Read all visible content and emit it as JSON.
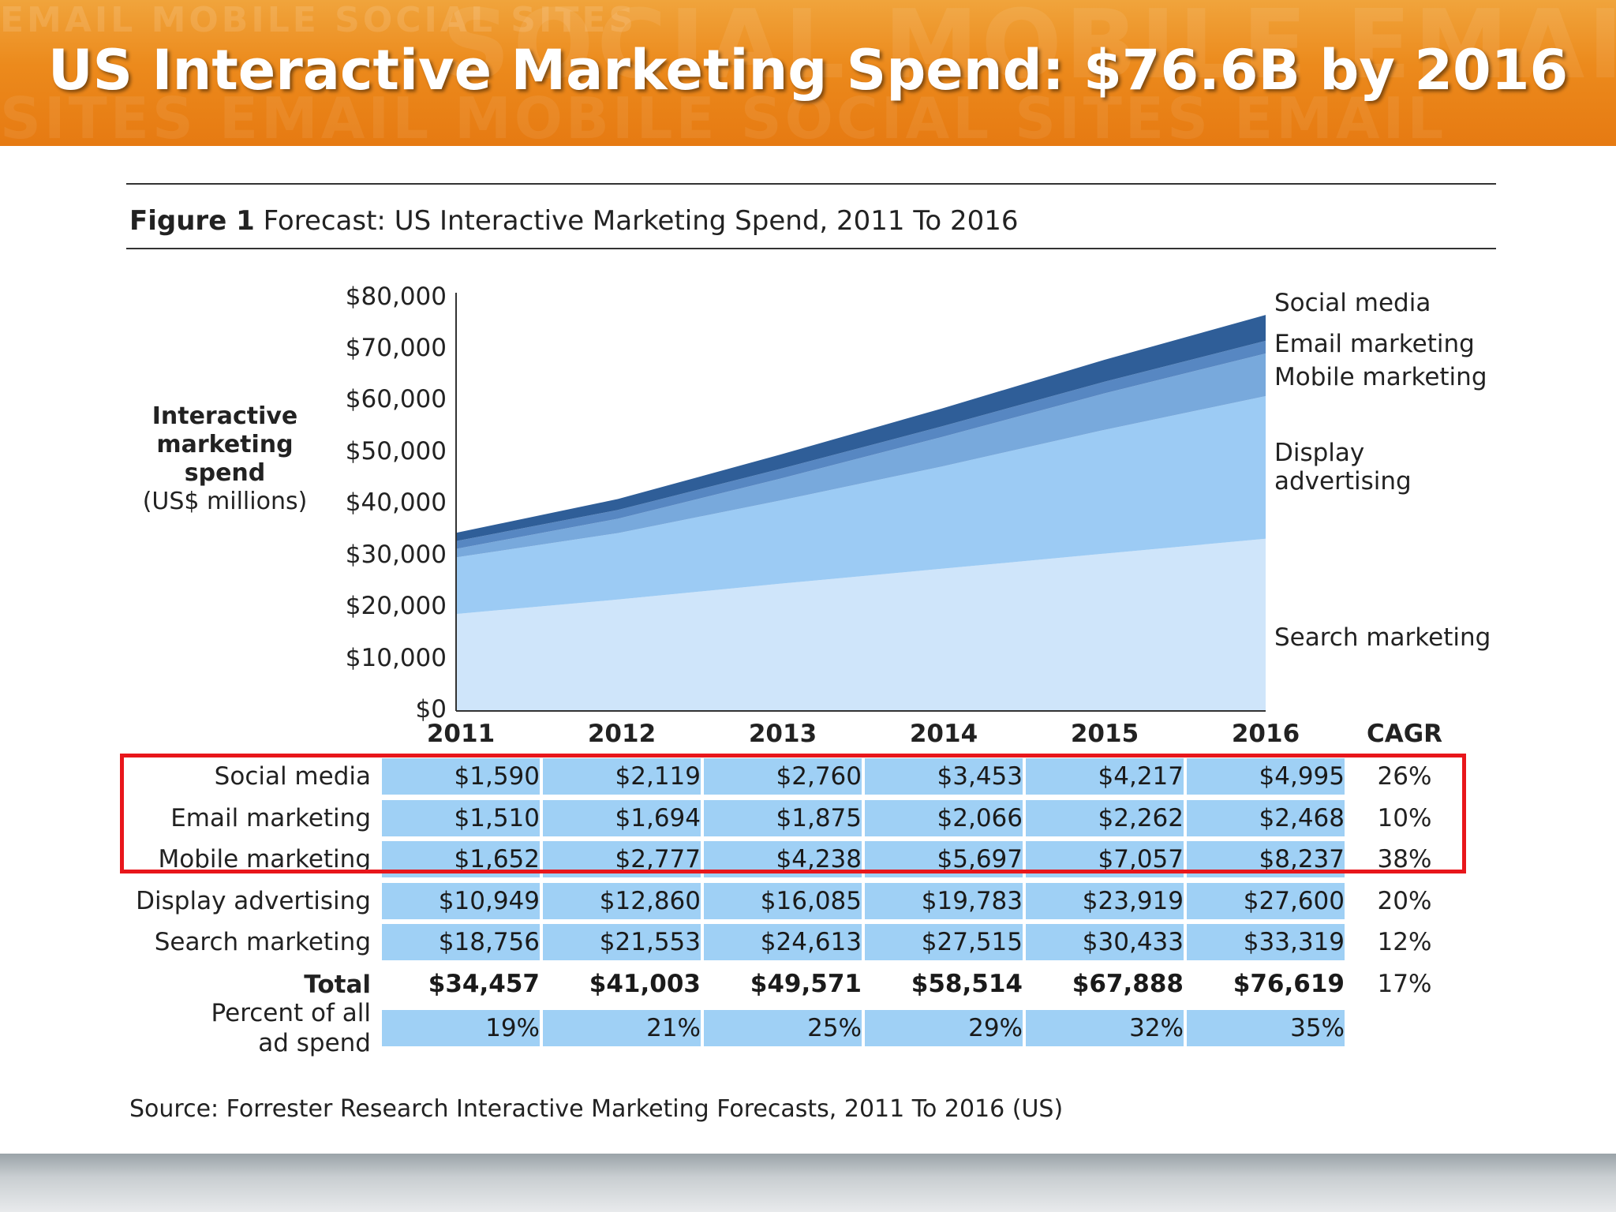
{
  "slide": {
    "title": "US Interactive Marketing Spend: $76.6B by 2016",
    "banner_watermark_text": "EMAIL MOBILE SOCIAL SITES SOCIAL MOBILE EMAIL SOCIAL",
    "banner_color": "#ec8a1c"
  },
  "figure": {
    "label": "Figure 1",
    "caption": "Forecast: US Interactive Marketing Spend, 2011 To 2016",
    "source": "Source: Forrester Research Interactive Marketing Forecasts, 2011 To 2016 (US)"
  },
  "axis": {
    "ylabel_bold_1": "Interactive",
    "ylabel_bold_2": "marketing",
    "ylabel_bold_3": "spend",
    "ylabel_unit": "(US$ millions)",
    "yticks": [
      "$80,000",
      "$70,000",
      "$60,000",
      "$50,000",
      "$40,000",
      "$30,000",
      "$20,000",
      "$10,000",
      "$0"
    ]
  },
  "table": {
    "cagr_header": "CAGR",
    "rows": [
      {
        "label": "Social media",
        "values": [
          "$1,590",
          "$2,119",
          "$2,760",
          "$3,453",
          "$4,217",
          "$4,995"
        ],
        "cagr": "26%"
      },
      {
        "label": "Email marketing",
        "values": [
          "$1,510",
          "$1,694",
          "$1,875",
          "$2,066",
          "$2,262",
          "$2,468"
        ],
        "cagr": "10%"
      },
      {
        "label": "Mobile marketing",
        "values": [
          "$1,652",
          "$2,777",
          "$4,238",
          "$5,697",
          "$7,057",
          "$8,237"
        ],
        "cagr": "38%"
      },
      {
        "label": "Display advertising",
        "values": [
          "$10,949",
          "$12,860",
          "$16,085",
          "$19,783",
          "$23,919",
          "$27,600"
        ],
        "cagr": "20%"
      },
      {
        "label": "Search marketing",
        "values": [
          "$18,756",
          "$21,553",
          "$24,613",
          "$27,515",
          "$30,433",
          "$33,319"
        ],
        "cagr": "12%"
      }
    ],
    "total": {
      "label": "Total",
      "values": [
        "$34,457",
        "$41,003",
        "$49,571",
        "$58,514",
        "$67,888",
        "$76,619"
      ],
      "cagr": "17%"
    },
    "percent": {
      "label_1": "Percent of all",
      "label_2": "ad spend",
      "values": [
        "19%",
        "21%",
        "25%",
        "29%",
        "32%",
        "35%"
      ]
    },
    "highlight_color": "#e8161b",
    "cell_color": "#9fd0f5"
  },
  "chart_data": {
    "type": "area",
    "stacked": true,
    "x": [
      "2011",
      "2012",
      "2013",
      "2014",
      "2015",
      "2016"
    ],
    "ylim": [
      0,
      80000
    ],
    "ylabel": "Interactive marketing spend (US$ millions)",
    "series": [
      {
        "name": "Search marketing",
        "values": [
          18756,
          21553,
          24613,
          27515,
          30433,
          33319
        ],
        "color": "#cfe5fa"
      },
      {
        "name": "Display advertising",
        "values": [
          10949,
          12860,
          16085,
          19783,
          23919,
          27600
        ],
        "color": "#9ccbf4"
      },
      {
        "name": "Mobile marketing",
        "values": [
          1652,
          2777,
          4238,
          5697,
          7057,
          8237
        ],
        "color": "#78a9dc"
      },
      {
        "name": "Email marketing",
        "values": [
          1510,
          1694,
          1875,
          2066,
          2262,
          2468
        ],
        "color": "#5787c2"
      },
      {
        "name": "Social media",
        "values": [
          1590,
          2119,
          2760,
          3453,
          4217,
          4995
        ],
        "color": "#2f5e98"
      }
    ]
  }
}
